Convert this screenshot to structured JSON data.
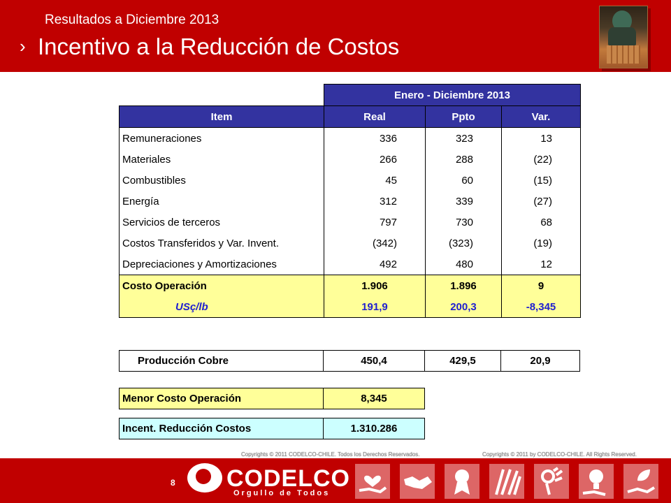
{
  "header": {
    "subtitle": "Resultados a  Diciembre 2013",
    "chevron": "›",
    "title": "Incentivo a la Reducción de Costos"
  },
  "table": {
    "period_header": "Enero - Diciembre 2013",
    "columns": [
      "Item",
      "Real",
      "Ppto",
      "Var."
    ],
    "rows": [
      {
        "item": "Remuneraciones",
        "real": "336",
        "ppto": "323",
        "var": "13"
      },
      {
        "item": "Materiales",
        "real": "266",
        "ppto": "288",
        "var": "(22)"
      },
      {
        "item": "Combustibles",
        "real": "45",
        "ppto": "60",
        "var": "(15)"
      },
      {
        "item": "Energía",
        "real": "312",
        "ppto": "339",
        "var": "(27)"
      },
      {
        "item": "Servicios de terceros",
        "real": "797",
        "ppto": "730",
        "var": "68"
      },
      {
        "item": "Costos Transferidos y Var. Invent.",
        "real": "(342)",
        "ppto": "(323)",
        "var": "(19)"
      },
      {
        "item": "Depreciaciones y Amortizaciones",
        "real": "492",
        "ppto": "480",
        "var": "12"
      }
    ],
    "total": {
      "item": "Costo Operación",
      "real": "1.906",
      "ppto": "1.896",
      "var": "9"
    },
    "unit": {
      "item": "USç/lb",
      "real": "191,9",
      "ppto": "200,3",
      "var": "-8,345"
    }
  },
  "production": {
    "label": "Producción Cobre",
    "real": "450,4",
    "ppto": "429,5",
    "var": "20,9"
  },
  "menor_costo": {
    "label": "Menor Costo Operación",
    "value": "8,345"
  },
  "incentivo": {
    "label": "Incent. Reducción Costos",
    "value": "1.310.286"
  },
  "footer": {
    "copyright_es": "Copyrights © 2011 CODELCO-CHILE.  Todos los Derechos Reservados.",
    "copyright_en": "Copyrights © 2011 by CODELCO-CHILE.  All Rights Reserved.",
    "page_number": "8",
    "brand": "CODELCO",
    "tagline": "Orgullo de Todos",
    "icons": [
      "heart-hand-icon",
      "handshake-icon",
      "medal-icon",
      "hands-together-icon",
      "ok-hand-icon",
      "lightbulb-icon",
      "leaf-hand-icon"
    ]
  },
  "colors": {
    "brand_red": "#c00000",
    "header_blue": "#3333a0",
    "highlight_yellow": "#ffff99",
    "highlight_cyan": "#ccffff",
    "unit_blue": "#1f1fd0"
  }
}
